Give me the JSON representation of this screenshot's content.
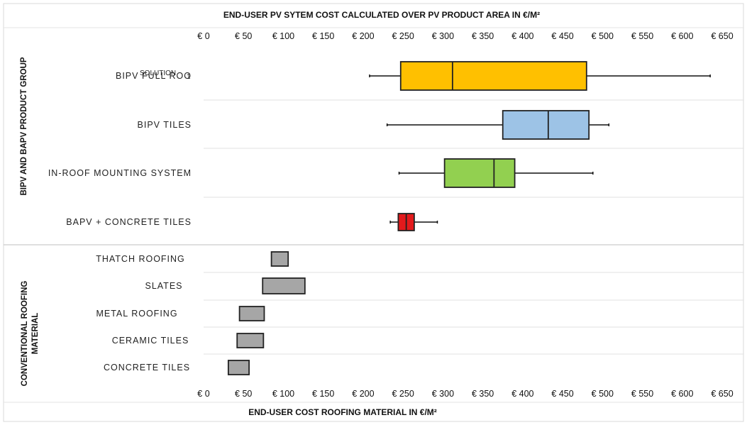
{
  "chart_data": {
    "type": "box",
    "top_title": "END-USER PV SYTEM COST CALCULATED OVER PV  PRODUCT AREA IN €/M²",
    "bottom_title": "END-USER COST ROOFING MATERIAL IN €/M²",
    "xlim": [
      0,
      650
    ],
    "ticks": [
      "€ 0",
      "€ 50",
      "€ 100",
      "€ 150",
      "€ 200",
      "€ 250",
      "€ 300",
      "€ 350",
      "€ 400",
      "€ 450",
      "€ 500",
      "€ 550",
      "€ 600",
      "€ 650"
    ],
    "tick_values": [
      0,
      50,
      100,
      150,
      200,
      250,
      300,
      350,
      400,
      450,
      500,
      550,
      600,
      650
    ],
    "groups": [
      {
        "label": "BIPV AND BAPV PRODUCT GROUP",
        "categories": [
          {
            "label": "BIPV FULL ROO",
            "label_overlay": "SOLUTION",
            "label_tail": "1",
            "min": 208,
            "q1": 247,
            "median": 312,
            "q3": 480,
            "max": 635,
            "color": "#ffc000"
          },
          {
            "label": "BIPV TILES",
            "min": 230,
            "q1": 375,
            "median": 432,
            "q3": 483,
            "max": 508,
            "color": "#9dc3e6"
          },
          {
            "label": "IN-ROOF MOUNTING SYSTEM",
            "min": 245,
            "q1": 302,
            "median": 364,
            "q3": 390,
            "max": 488,
            "color": "#92d050"
          },
          {
            "label": "BAPV + CONCRETE TILES",
            "min": 234,
            "q1": 244,
            "median": 254,
            "q3": 264,
            "max": 293,
            "color": "#e31a1c"
          }
        ]
      },
      {
        "label": "CONVENTIONAL ROOFING MATERIAL",
        "categories": [
          {
            "label": "THATCH ROOFING",
            "min": 85,
            "q1": 85,
            "median": null,
            "q3": 106,
            "max": 106,
            "color": "#a6a6a6"
          },
          {
            "label": "SLATES",
            "min": 74,
            "q1": 74,
            "median": null,
            "q3": 127,
            "max": 127,
            "color": "#a6a6a6"
          },
          {
            "label": "METAL ROOFING",
            "min": 45,
            "q1": 45,
            "median": null,
            "q3": 76,
            "max": 76,
            "color": "#a6a6a6"
          },
          {
            "label": "CERAMIC TILES",
            "min": 42,
            "q1": 42,
            "median": null,
            "q3": 75,
            "max": 75,
            "color": "#a6a6a6"
          },
          {
            "label": "CONCRETE TILES",
            "min": 31,
            "q1": 31,
            "median": null,
            "q3": 57,
            "max": 57,
            "color": "#a6a6a6"
          }
        ]
      }
    ],
    "group_label_lines": [
      [
        "BIPV AND BAPV PRODUCT GROUP"
      ],
      [
        "CONVENTIONAL ROOFING",
        "MATERIAL"
      ]
    ],
    "grid": "horizontal-separators"
  }
}
